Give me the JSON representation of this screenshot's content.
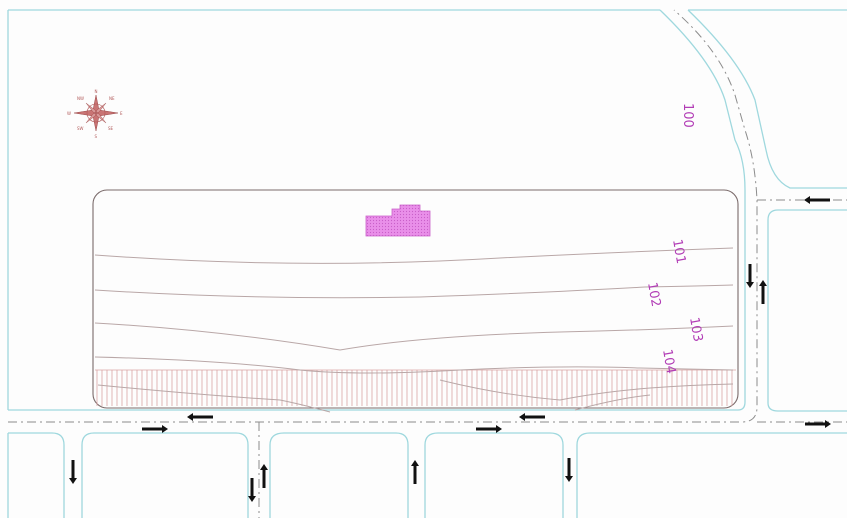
{
  "map": {
    "colors": {
      "background": "#fdfdfd",
      "road_edge": "#9fd8de",
      "centerline": "#8c8c8c",
      "site_boundary": "#7a6a6a",
      "contour": "#b9a7a7",
      "hatch": "#d9a3a3",
      "building": "#e07be0",
      "label": "#b23db6",
      "arrow": "#111111",
      "compass": "#b15a5a"
    },
    "compass": {
      "icon": "compass-rose-icon",
      "labels": [
        "NW",
        "NE",
        "E",
        "SE",
        "S",
        "SW",
        "W",
        "N"
      ]
    },
    "contour_labels": [
      "100",
      "101",
      "102",
      "103",
      "104"
    ],
    "building_icon": "building-footprint-icon",
    "traffic_arrow_icon": "arrow-icon"
  }
}
